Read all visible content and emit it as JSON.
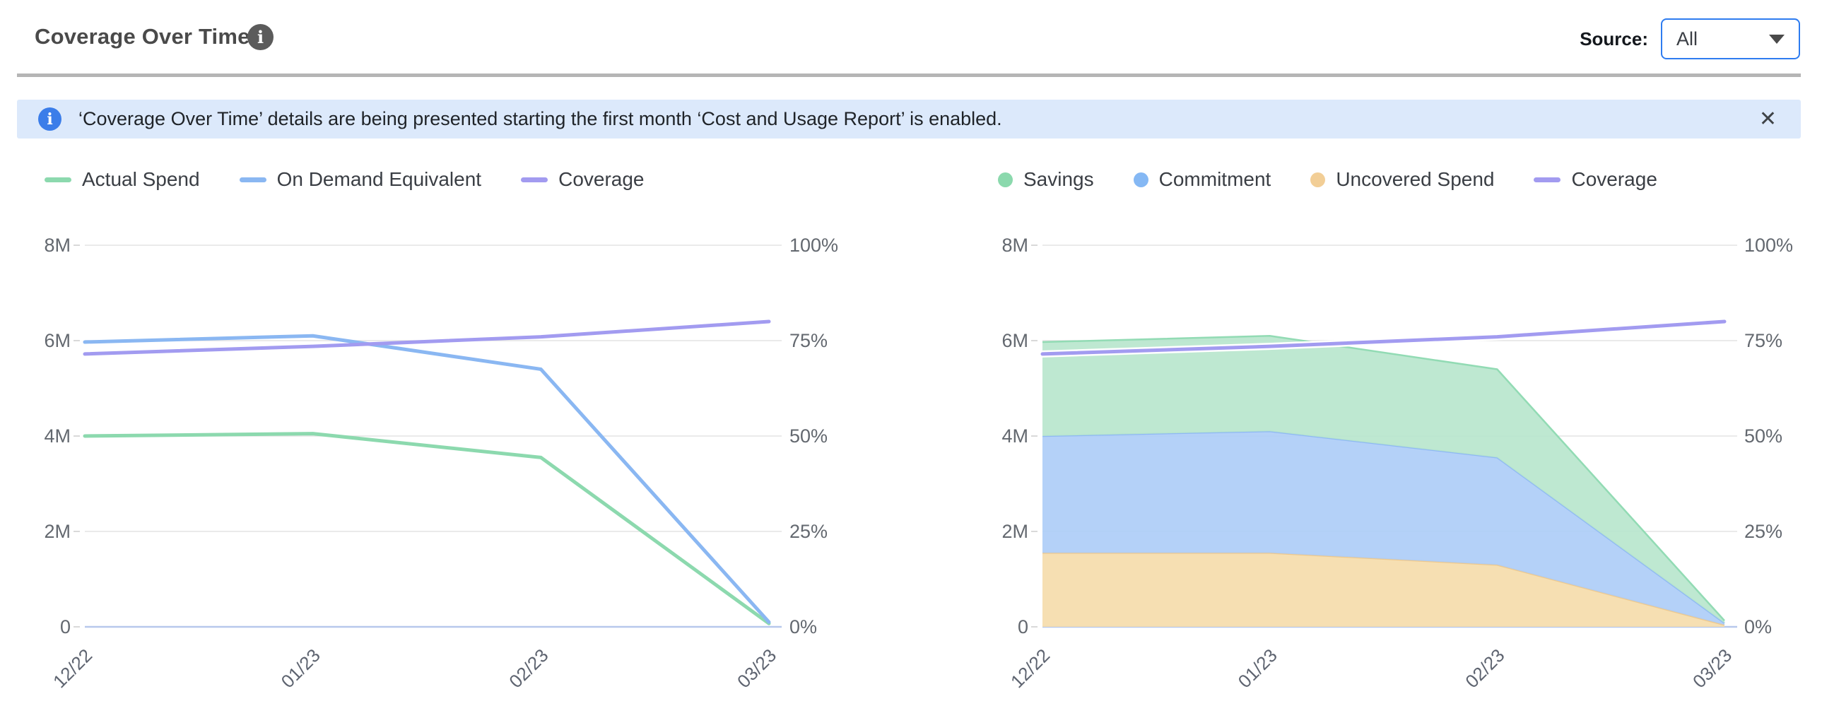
{
  "header": {
    "title": "Coverage Over Time",
    "info_icon_glyph": "i",
    "source_label": "Source:",
    "source_value": "All"
  },
  "banner": {
    "info_icon_glyph": "i",
    "text": "‘Coverage Over Time’ details are being presented starting the first month ‘Cost and Usage Report’ is enabled.",
    "close_icon": "✕"
  },
  "colors": {
    "accent_blue": "#2e7cf0",
    "banner_bg": "#dce9fb",
    "banner_icon": "#3b7de9",
    "gridline": "#e3e3e3",
    "baseline": "#b7c8ec",
    "axis_text": "#63686f",
    "series_green": "#8cd9ae",
    "series_blue": "#8ab7f2",
    "series_purple": "#a29bf0",
    "area_green_fill": "#b9e6cd",
    "area_blue_fill": "#aecdf7",
    "area_tan_fill": "#f5dcab",
    "area_green_line": "#92dbb4",
    "area_blue_line": "#8fb9f3",
    "area_tan_line": "#eec98e"
  },
  "legends": [
    {
      "items": [
        {
          "label": "Actual Spend",
          "swatch": "line",
          "color": "#8cd9ae"
        },
        {
          "label": "On Demand Equivalent",
          "swatch": "line",
          "color": "#8ab7f2"
        },
        {
          "label": "Coverage",
          "swatch": "line",
          "color": "#a29bf0"
        }
      ]
    },
    {
      "items": [
        {
          "label": "Savings",
          "swatch": "dot",
          "color": "#8bd9ad"
        },
        {
          "label": "Commitment",
          "swatch": "dot",
          "color": "#85b8f4"
        },
        {
          "label": "Uncovered Spend",
          "swatch": "dot",
          "color": "#f2ce96"
        },
        {
          "label": "Coverage",
          "swatch": "line",
          "color": "#a29bf0"
        }
      ]
    }
  ],
  "chart_data": [
    {
      "type": "line",
      "title": "Coverage Over Time - spend lines",
      "categories": [
        "12/22",
        "01/23",
        "02/23",
        "03/23"
      ],
      "left_axis": {
        "ticks": [
          "8M",
          "6M",
          "4M",
          "2M",
          "0"
        ],
        "max": 8,
        "unit": "M"
      },
      "right_axis": {
        "ticks": [
          "100%",
          "75%",
          "50%",
          "25%",
          "0%"
        ],
        "max": 100,
        "unit": "%"
      },
      "grid": true,
      "legend_position": "top-left",
      "series": [
        {
          "name": "Actual Spend",
          "render": "line",
          "axis": "left",
          "color": "#8cd9ae",
          "values": [
            4.0,
            4.05,
            3.55,
            0.07
          ]
        },
        {
          "name": "On Demand Equivalent",
          "render": "line",
          "axis": "left",
          "color": "#8ab7f2",
          "values": [
            5.97,
            6.1,
            5.4,
            0.1
          ]
        },
        {
          "name": "Coverage",
          "render": "line",
          "axis": "right",
          "color": "#a29bf0",
          "values": [
            71.5,
            73.5,
            76,
            80
          ]
        }
      ]
    },
    {
      "type": "area",
      "stacked": true,
      "title": "Coverage Over Time - stacked savings/commitment/uncovered",
      "categories": [
        "12/22",
        "01/23",
        "02/23",
        "03/23"
      ],
      "left_axis": {
        "ticks": [
          "8M",
          "6M",
          "4M",
          "2M",
          "0"
        ],
        "max": 8,
        "unit": "M"
      },
      "right_axis": {
        "ticks": [
          "100%",
          "75%",
          "50%",
          "25%",
          "0%"
        ],
        "max": 100,
        "unit": "%"
      },
      "grid": true,
      "legend_position": "top-left",
      "series": [
        {
          "name": "Uncovered Spend",
          "render": "area",
          "axis": "left",
          "fill": "#f5dcab",
          "line": "#eec98e",
          "values": [
            1.55,
            1.55,
            1.3,
            0.04
          ]
        },
        {
          "name": "Commitment",
          "render": "area",
          "axis": "left",
          "fill": "#aecdf7",
          "line": "#8fb9f3",
          "values": [
            2.45,
            2.55,
            2.25,
            0.04
          ]
        },
        {
          "name": "Savings",
          "render": "area",
          "axis": "left",
          "fill": "#b9e6cd",
          "line": "#92dbb4",
          "values": [
            1.97,
            2.0,
            1.85,
            0.05
          ]
        },
        {
          "name": "Coverage",
          "render": "line",
          "axis": "right",
          "color": "#a29bf0",
          "halo": "#ffffff",
          "values": [
            71.5,
            73.5,
            76,
            80
          ]
        }
      ]
    }
  ]
}
